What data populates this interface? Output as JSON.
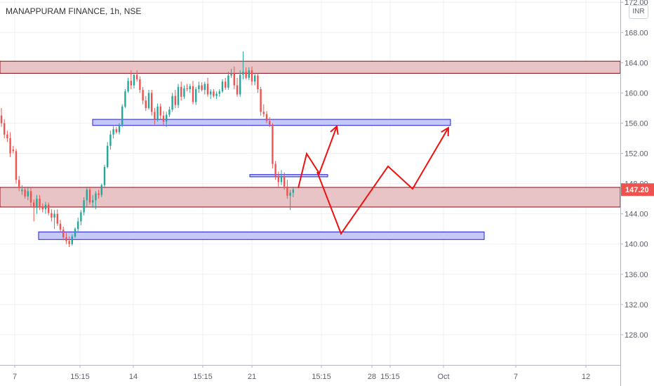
{
  "header": {
    "title": "MANAPPURAM FINANCE, 1h, NSE",
    "currency": "INR"
  },
  "colors": {
    "up": "#26a69a",
    "down": "#ef5350",
    "grid": "#eef0f4",
    "resistance_fill": "#e8c4c6",
    "resistance_stroke": "#8b0a14",
    "support_fill": "#c6c8f5",
    "support_stroke": "#2020e0",
    "projection": "#ee1111",
    "price_tag": "#ef5350",
    "axis_text": "#5d606b"
  },
  "chart_data": {
    "type": "candlestick",
    "y_ticks": [
      "128.00",
      "132.00",
      "136.00",
      "140.00",
      "144.00",
      "148.00",
      "152.00",
      "156.00",
      "160.00",
      "164.00",
      "168.00",
      "172.00"
    ],
    "x_ticks": [
      "7",
      "15:15",
      "14",
      "15:15",
      "21",
      "15:15",
      "28",
      "15:15",
      "Oct",
      "7",
      "12"
    ],
    "ylim": [
      124,
      172.3
    ],
    "last_price": "147.20",
    "zones": [
      {
        "kind": "resistance",
        "low": 162.6,
        "high": 164.2
      },
      {
        "kind": "resistance",
        "low": 144.9,
        "high": 147.5
      }
    ],
    "support_lines": [
      {
        "low": 155.7,
        "high": 156.5
      },
      {
        "low": 148.9,
        "high": 149.2
      },
      {
        "low": 140.6,
        "high": 141.6
      }
    ],
    "candles": [
      [
        157.0,
        158.0,
        155.5,
        156.0
      ],
      [
        156.0,
        156.5,
        154.0,
        154.5
      ],
      [
        154.5,
        155.0,
        153.5,
        154.0
      ],
      [
        154.0,
        154.8,
        151.5,
        152.0
      ],
      [
        152.5,
        153.0,
        152.0,
        152.3
      ],
      [
        152.3,
        152.6,
        148.0,
        148.5
      ],
      [
        148.5,
        149.0,
        147.0,
        147.5
      ],
      [
        147.0,
        147.8,
        146.5,
        147.2
      ],
      [
        147.2,
        147.5,
        146.0,
        146.3
      ],
      [
        146.3,
        147.6,
        145.8,
        147.0
      ],
      [
        147.0,
        147.4,
        145.0,
        145.5
      ],
      [
        145.5,
        145.9,
        143.0,
        144.8
      ],
      [
        144.8,
        146.5,
        144.0,
        146.0
      ],
      [
        146.0,
        146.5,
        144.5,
        145.0
      ],
      [
        145.0,
        145.4,
        144.2,
        144.6
      ],
      [
        144.6,
        145.6,
        144.0,
        145.2
      ],
      [
        145.2,
        145.5,
        143.8,
        144.1
      ],
      [
        144.1,
        144.6,
        143.0,
        143.5
      ],
      [
        143.5,
        144.5,
        142.0,
        144.0
      ],
      [
        144.0,
        144.6,
        142.4,
        142.7
      ],
      [
        142.7,
        143.2,
        141.5,
        141.9
      ],
      [
        141.9,
        142.3,
        140.5,
        140.9
      ],
      [
        140.9,
        141.5,
        140.0,
        140.4
      ],
      [
        140.4,
        141.0,
        139.6,
        140.0
      ],
      [
        140.0,
        141.3,
        139.8,
        141.0
      ],
      [
        141.0,
        142.2,
        140.8,
        142.0
      ],
      [
        142.0,
        143.5,
        141.5,
        143.0
      ],
      [
        143.0,
        144.5,
        142.5,
        144.2
      ],
      [
        144.2,
        146.2,
        143.8,
        145.8
      ],
      [
        145.8,
        147.6,
        145.0,
        147.2
      ],
      [
        147.2,
        147.6,
        145.2,
        145.5
      ],
      [
        145.5,
        146.5,
        144.8,
        145.8
      ],
      [
        145.8,
        147.0,
        144.6,
        146.7
      ],
      [
        146.7,
        147.2,
        146.0,
        146.5
      ],
      [
        146.5,
        148.0,
        146.2,
        147.8
      ],
      [
        147.8,
        150.5,
        147.5,
        150.2
      ],
      [
        150.2,
        153.5,
        150.0,
        153.0
      ],
      [
        153.0,
        155.0,
        152.5,
        154.5
      ],
      [
        154.5,
        155.6,
        154.0,
        155.2
      ],
      [
        155.2,
        155.5,
        154.6,
        154.8
      ],
      [
        154.8,
        156.0,
        154.5,
        155.8
      ],
      [
        155.8,
        158.5,
        155.5,
        158.2
      ],
      [
        158.2,
        160.5,
        158.0,
        160.2
      ],
      [
        160.2,
        162.0,
        160.0,
        161.6
      ],
      [
        161.6,
        163.0,
        160.5,
        161.0
      ],
      [
        161.0,
        162.5,
        160.6,
        162.4
      ],
      [
        162.4,
        163.0,
        161.5,
        161.8
      ],
      [
        161.8,
        162.2,
        160.0,
        160.4
      ],
      [
        160.4,
        160.8,
        158.5,
        159.0
      ],
      [
        159.0,
        159.6,
        157.6,
        158.0
      ],
      [
        158.0,
        160.4,
        157.8,
        160.0
      ],
      [
        160.0,
        160.4,
        157.0,
        157.5
      ],
      [
        157.5,
        158.0,
        155.8,
        156.5
      ],
      [
        156.5,
        158.6,
        156.2,
        158.2
      ],
      [
        158.2,
        158.6,
        156.5,
        157.0
      ],
      [
        157.0,
        157.6,
        155.6,
        156.2
      ],
      [
        156.2,
        157.5,
        155.5,
        157.1
      ],
      [
        157.1,
        158.2,
        156.8,
        157.8
      ],
      [
        157.8,
        160.0,
        157.5,
        159.6
      ],
      [
        159.6,
        160.4,
        158.0,
        158.4
      ],
      [
        158.4,
        161.2,
        158.0,
        160.8
      ],
      [
        160.8,
        161.5,
        159.0,
        159.5
      ],
      [
        159.5,
        161.0,
        159.2,
        160.6
      ],
      [
        160.6,
        161.2,
        160.2,
        160.5
      ],
      [
        160.5,
        161.2,
        160.0,
        160.9
      ],
      [
        160.9,
        161.6,
        158.5,
        158.8
      ],
      [
        158.8,
        160.8,
        158.4,
        160.5
      ],
      [
        160.5,
        161.5,
        160.0,
        161.0
      ],
      [
        161.0,
        161.4,
        160.2,
        160.4
      ],
      [
        160.4,
        161.5,
        159.8,
        161.2
      ],
      [
        161.2,
        162.0,
        159.5,
        159.8
      ],
      [
        159.8,
        160.5,
        159.2,
        160.2
      ],
      [
        160.2,
        160.5,
        159.4,
        159.6
      ],
      [
        159.6,
        160.2,
        159.2,
        159.9
      ],
      [
        159.9,
        160.5,
        159.5,
        160.2
      ],
      [
        160.2,
        161.8,
        160.0,
        161.5
      ],
      [
        161.5,
        162.0,
        160.4,
        160.7
      ],
      [
        160.7,
        162.8,
        160.4,
        162.3
      ],
      [
        162.3,
        163.2,
        162.0,
        162.6
      ],
      [
        162.6,
        163.5,
        160.5,
        161.0
      ],
      [
        161.0,
        162.0,
        159.5,
        159.8
      ],
      [
        159.8,
        163.0,
        159.5,
        162.4
      ],
      [
        162.4,
        165.5,
        161.8,
        162.8
      ],
      [
        162.8,
        163.4,
        161.8,
        162.0
      ],
      [
        162.0,
        163.4,
        161.7,
        163.0
      ],
      [
        163.0,
        163.5,
        161.0,
        161.5
      ],
      [
        161.5,
        162.6,
        161.0,
        162.3
      ],
      [
        162.3,
        162.6,
        160.0,
        160.5
      ],
      [
        160.5,
        160.8,
        157.0,
        157.5
      ],
      [
        157.5,
        158.5,
        156.8,
        157.2
      ],
      [
        157.2,
        157.6,
        156.0,
        156.3
      ],
      [
        156.3,
        156.8,
        155.5,
        155.8
      ],
      [
        155.8,
        156.0,
        150.0,
        150.6
      ],
      [
        150.6,
        151.0,
        148.5,
        149.0
      ],
      [
        149.0,
        149.6,
        147.6,
        148.2
      ],
      [
        148.2,
        149.8,
        147.8,
        148.9
      ],
      [
        148.9,
        149.5,
        147.2,
        147.6
      ],
      [
        147.6,
        148.5,
        146.0,
        146.4
      ],
      [
        146.4,
        147.2,
        144.5,
        146.8
      ],
      [
        146.8,
        147.6,
        146.2,
        147.2
      ]
    ],
    "projections": [
      [
        [
          425,
          268
        ],
        [
          437,
          219
        ],
        [
          455,
          247
        ],
        [
          480,
          180
        ]
      ],
      [
        [
          452,
          245
        ],
        [
          486,
          333
        ],
        [
          553,
          237
        ],
        [
          588,
          269
        ],
        [
          639,
          182
        ]
      ]
    ]
  }
}
